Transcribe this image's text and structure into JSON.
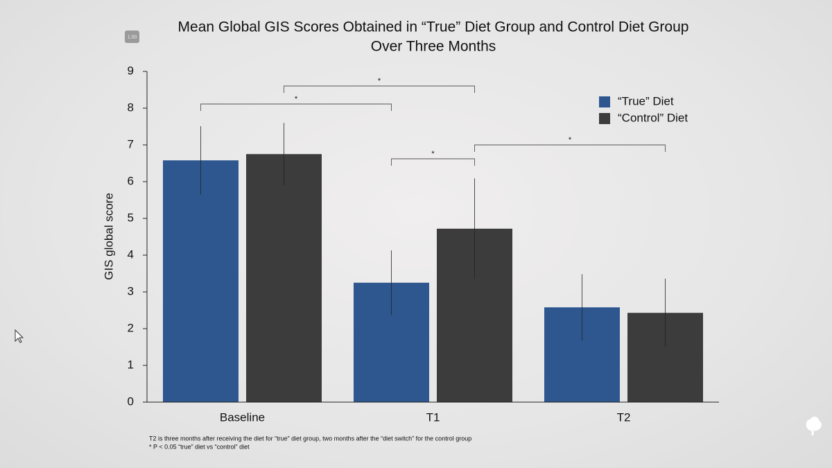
{
  "chart_data": {
    "type": "bar",
    "title": [
      "Mean Global GIS Scores Obtained in “True” Diet Group and Control Diet Group",
      "Over Three Months"
    ],
    "y_label": "GIS global score",
    "categories": [
      "Baseline",
      "T1",
      "T2"
    ],
    "series": [
      {
        "name": "“True” Diet",
        "color": "#2e578f",
        "values": [
          6.58,
          3.25,
          2.58
        ],
        "errors": [
          0.93,
          0.88,
          0.9
        ]
      },
      {
        "name": "“Control” Diet",
        "color": "#3c3c3c",
        "values": [
          6.75,
          4.72,
          2.43
        ],
        "errors": [
          0.85,
          1.37,
          0.93
        ]
      }
    ],
    "ylim": [
      0,
      9
    ],
    "yticks": [
      0,
      1,
      2,
      3,
      4,
      5,
      6,
      7,
      8,
      9
    ],
    "legend": "upper right",
    "significance": [
      {
        "label": "*",
        "from": [
          0,
          0
        ],
        "to": [
          0,
          1
        ]
      },
      {
        "label": "*",
        "from": [
          1,
          0
        ],
        "to": [
          1,
          1
        ]
      },
      {
        "label": "*",
        "from": [
          0,
          1
        ],
        "to": [
          1,
          1
        ]
      },
      {
        "label": "*",
        "from": [
          1,
          1
        ],
        "to": [
          1,
          2
        ]
      }
    ],
    "footnotes": [
      "T2 is three months after receiving the diet for “true” diet group, two months after the “diet switch” for the control group",
      "* P < 0.05 “true” diet vs “control” diet"
    ]
  },
  "speed_badge": "1.00"
}
